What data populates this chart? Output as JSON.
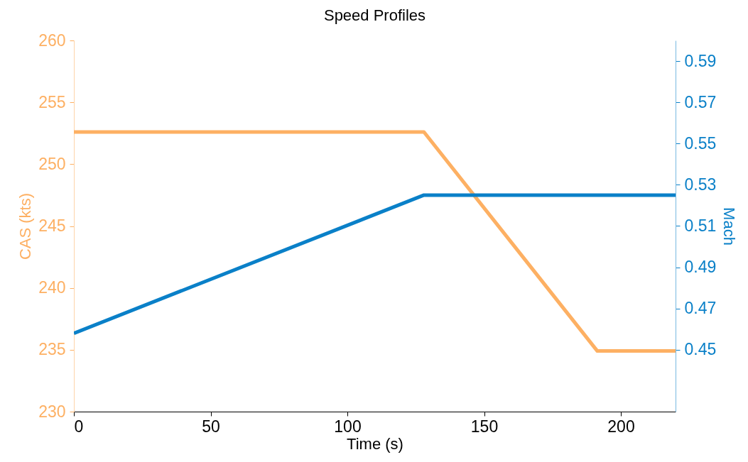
{
  "chart_data": {
    "type": "line",
    "title": "Speed Profiles",
    "xlabel": "Time (s)",
    "ylabel": "CAS (kts)",
    "y2label": "Mach",
    "xlim": [
      0,
      220
    ],
    "xticks": [
      0,
      50,
      100,
      150,
      200
    ],
    "ylim": [
      230,
      260
    ],
    "yticks": [
      230,
      235,
      240,
      245,
      250,
      255,
      260
    ],
    "y2lim": [
      0.42,
      0.6
    ],
    "y2ticks": [
      0.45,
      0.47,
      0.49,
      0.51,
      0.53,
      0.55,
      0.57,
      0.59
    ],
    "series": [
      {
        "color": "#fdb063",
        "x": [
          0,
          128,
          191.4,
          220
        ],
        "values": [
          252.6,
          252.6,
          234.9,
          234.9
        ]
      },
      {
        "color": "#0a80c8",
        "axis": "y2",
        "x": [
          0,
          128,
          220
        ],
        "values": [
          0.458,
          0.525,
          0.525
        ]
      }
    ]
  }
}
